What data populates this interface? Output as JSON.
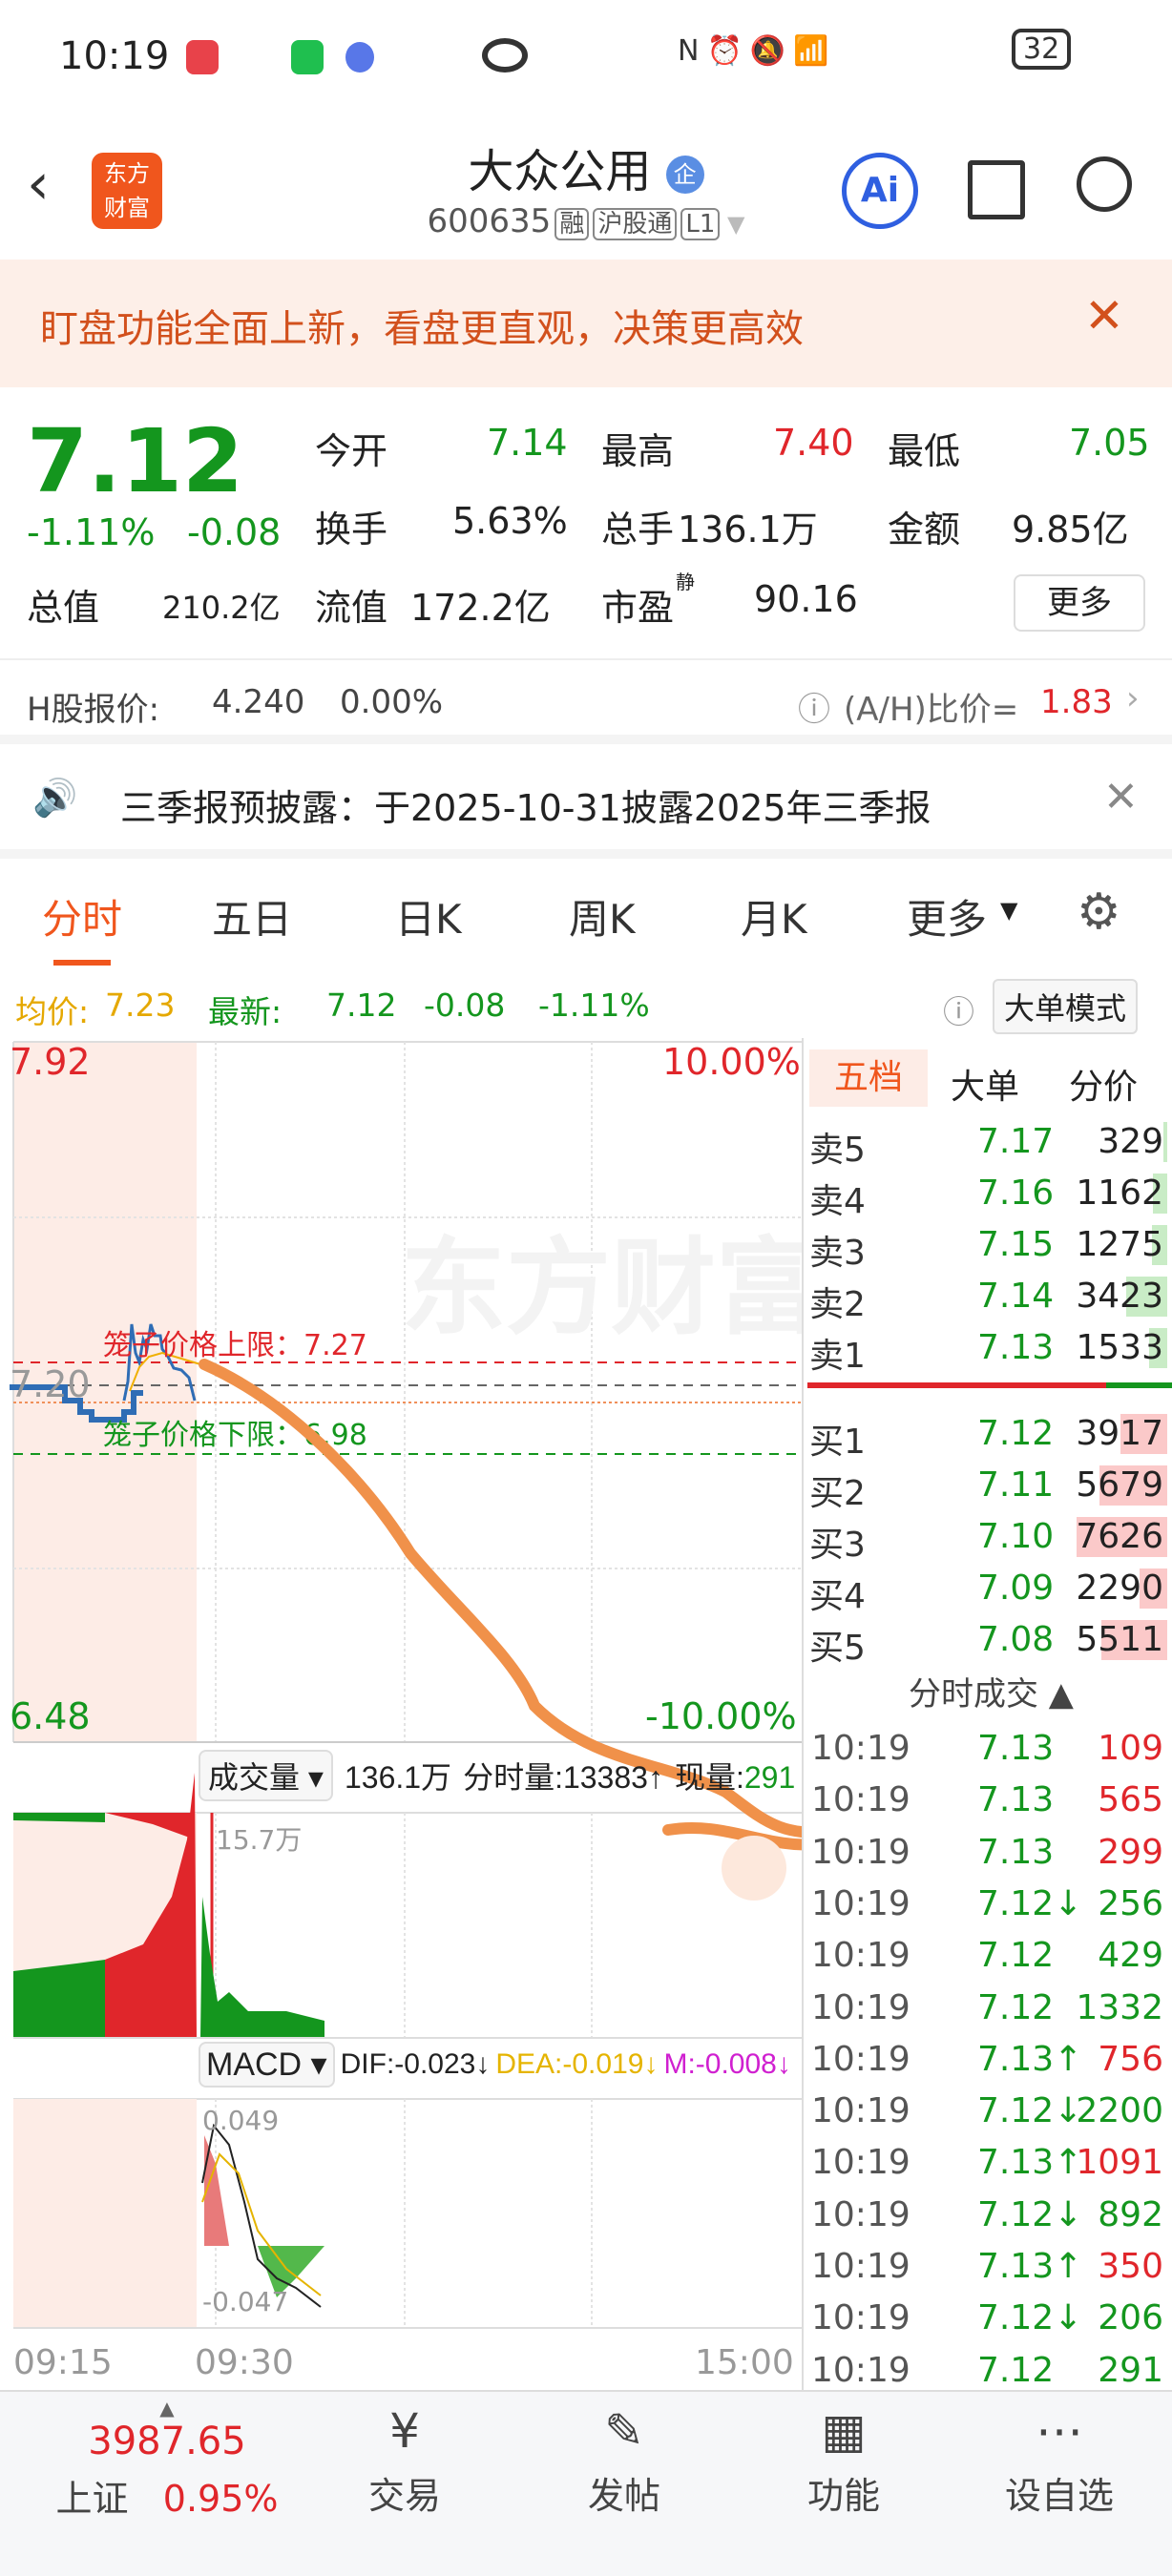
{
  "status_bar": {
    "time": "10:19",
    "battery": "32"
  },
  "header": {
    "logo": "东方财富",
    "stock_name": "大众公用",
    "badge": "企",
    "code": "600635",
    "tags": [
      "融",
      "沪股通",
      "L1"
    ],
    "ai_label": "Ai"
  },
  "banner": {
    "text": "盯盘功能全面上新，看盘更直观，决策更高效"
  },
  "quote": {
    "price": "7.12",
    "change_pct": "-1.11%",
    "change": "-0.08",
    "fields": [
      {
        "label": "今开",
        "value": "7.14",
        "color": "green"
      },
      {
        "label": "最高",
        "value": "7.40",
        "color": "red"
      },
      {
        "label": "最低",
        "value": "7.05",
        "color": "green"
      },
      {
        "label": "换手",
        "value": "5.63%"
      },
      {
        "label": "总手",
        "value": "136.1万"
      },
      {
        "label": "金额",
        "value": "9.85亿"
      }
    ],
    "total_value_label": "总值",
    "total_value": "210.2亿",
    "float_label": "流值",
    "float_value": "172.2亿",
    "pe_label": "市盈",
    "pe_sup": "静",
    "pe_value": "90.16",
    "more": "更多"
  },
  "hshare": {
    "label": "H股报价:",
    "price": "4.240",
    "pct": "0.00%",
    "ah_label": "(A/H)比价=",
    "ah_value": "1.83"
  },
  "notice": {
    "text": "三季报预披露：于2025-10-31披露2025年三季报"
  },
  "tabs": [
    "分时",
    "五日",
    "日K",
    "周K",
    "月K",
    "更多"
  ],
  "avgline": {
    "avg_label": "均价:",
    "avg": "7.23",
    "latest_label": "最新:",
    "latest": "7.12",
    "change": "-0.08",
    "pct": "-1.11%",
    "big_order": "大单模式"
  },
  "chart": {
    "y_max": "7.92",
    "y_min": "6.48",
    "pct_max": "10.00%",
    "pct_min": "-10.00%",
    "prev_close": "7.20",
    "cage_upper": "笼子价格上限：7.27",
    "cage_lower": "笼子价格下限：6.98",
    "watermark": "东方财富",
    "time_labels": [
      "09:15",
      "09:30",
      "15:00"
    ]
  },
  "volume": {
    "selector": "成交量",
    "total": "136.1万",
    "minute_label": "分时量:13383↑",
    "now_label": "现量:",
    "now_value": "291",
    "max_label": "15.7万"
  },
  "macd": {
    "selector": "MACD",
    "dif": "DIF:-0.023↓",
    "dea": "DEA:-0.019↓",
    "m": "M:-0.008↓",
    "top": "0.049",
    "bottom": "-0.047"
  },
  "orderbook": {
    "tabs": [
      "五档",
      "大单",
      "分价"
    ],
    "asks": [
      {
        "label": "卖5",
        "price": "7.17",
        "vol": "329"
      },
      {
        "label": "卖4",
        "price": "7.16",
        "vol": "1162"
      },
      {
        "label": "卖3",
        "price": "7.15",
        "vol": "1275"
      },
      {
        "label": "卖2",
        "price": "7.14",
        "vol": "3423"
      },
      {
        "label": "卖1",
        "price": "7.13",
        "vol": "1533"
      }
    ],
    "bids": [
      {
        "label": "买1",
        "price": "7.12",
        "vol": "3917"
      },
      {
        "label": "买2",
        "price": "7.11",
        "vol": "5679"
      },
      {
        "label": "买3",
        "price": "7.10",
        "vol": "7626"
      },
      {
        "label": "买4",
        "price": "7.09",
        "vol": "2290"
      },
      {
        "label": "买5",
        "price": "7.08",
        "vol": "5511"
      }
    ],
    "trades_title": "分时成交 ▲",
    "trades": [
      {
        "t": "10:19",
        "p": "7.13",
        "v": "109",
        "c": "red"
      },
      {
        "t": "10:19",
        "p": "7.13",
        "v": "565",
        "c": "red"
      },
      {
        "t": "10:19",
        "p": "7.13",
        "v": "299",
        "c": "red"
      },
      {
        "t": "10:19",
        "p": "7.12↓",
        "v": "256",
        "c": "green"
      },
      {
        "t": "10:19",
        "p": "7.12",
        "v": "429",
        "c": "green"
      },
      {
        "t": "10:19",
        "p": "7.12",
        "v": "1332",
        "c": "green"
      },
      {
        "t": "10:19",
        "p": "7.13↑",
        "v": "756",
        "c": "red"
      },
      {
        "t": "10:19",
        "p": "7.12↓",
        "v": "2200",
        "c": "green"
      },
      {
        "t": "10:19",
        "p": "7.13↑",
        "v": "1091",
        "c": "red"
      },
      {
        "t": "10:19",
        "p": "7.12↓",
        "v": "892",
        "c": "green"
      },
      {
        "t": "10:19",
        "p": "7.13↑",
        "v": "350",
        "c": "red"
      },
      {
        "t": "10:19",
        "p": "7.12↓",
        "v": "206",
        "c": "green"
      },
      {
        "t": "10:19",
        "p": "7.12",
        "v": "291",
        "c": "green"
      }
    ]
  },
  "bottom_nav": {
    "index_value": "3987.65",
    "index_name": "上证",
    "index_pct": "0.95%",
    "items": [
      "交易",
      "发帖",
      "功能",
      "设自选"
    ]
  },
  "colors": {
    "red": "#e0262b",
    "green": "#14961e",
    "accent": "#f0561d",
    "line": "#2f6db5"
  }
}
